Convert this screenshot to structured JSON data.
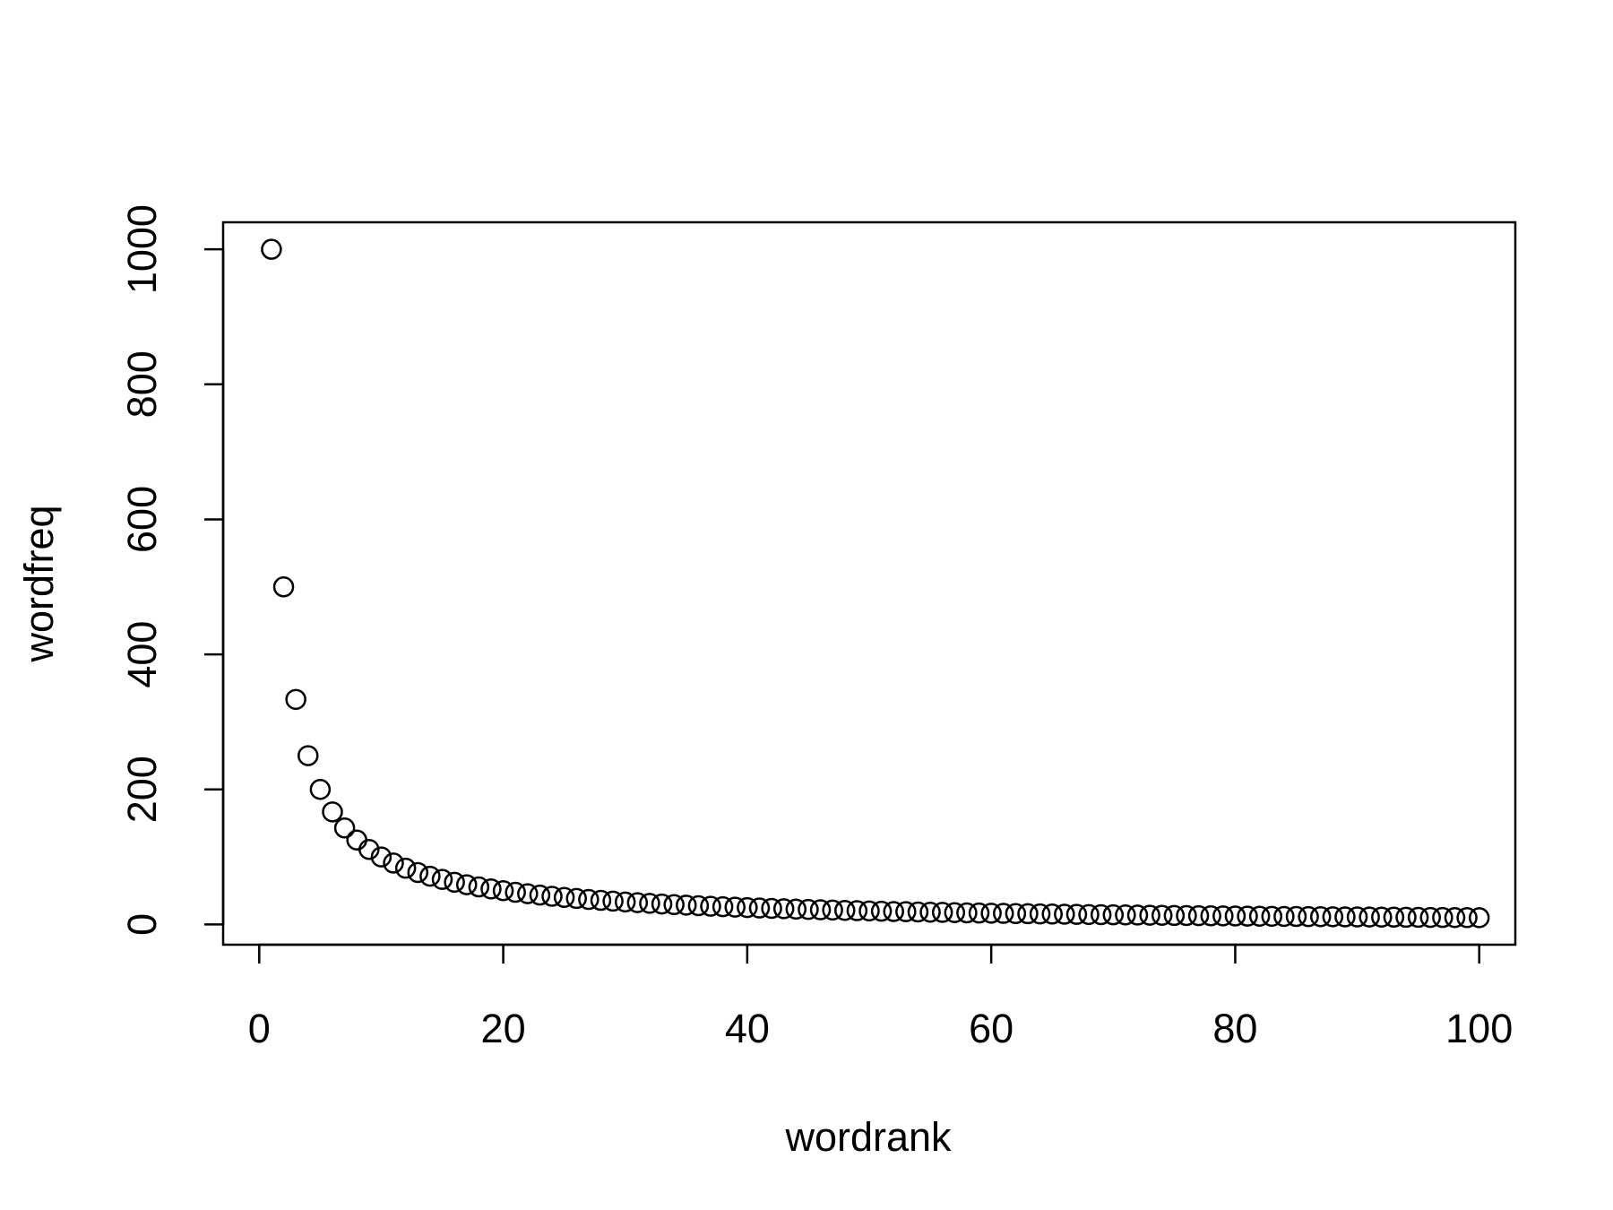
{
  "chart_data": {
    "type": "scatter",
    "title": "",
    "xlabel": "wordrank",
    "ylabel": "wordfreq",
    "xlim": [
      -2.96,
      102.96
    ],
    "ylim": [
      -30,
      1040
    ],
    "x_ticks": [
      0,
      20,
      40,
      60,
      80,
      100
    ],
    "y_ticks": [
      0,
      200,
      400,
      600,
      800,
      1000
    ],
    "x_tick_labels": [
      "0",
      "20",
      "40",
      "60",
      "80",
      "100"
    ],
    "y_tick_labels": [
      "0",
      "200",
      "400",
      "600",
      "800",
      "1000"
    ],
    "grid": false,
    "marker": "open-circle",
    "colors": {
      "points": "#000000",
      "background": "#ffffff"
    },
    "points": [
      {
        "x": 1,
        "y": 1000.0
      },
      {
        "x": 2,
        "y": 500.0
      },
      {
        "x": 3,
        "y": 333.3
      },
      {
        "x": 4,
        "y": 250.0
      },
      {
        "x": 5,
        "y": 200.0
      },
      {
        "x": 6,
        "y": 166.7
      },
      {
        "x": 7,
        "y": 142.9
      },
      {
        "x": 8,
        "y": 125.0
      },
      {
        "x": 9,
        "y": 111.1
      },
      {
        "x": 10,
        "y": 100.0
      },
      {
        "x": 11,
        "y": 90.9
      },
      {
        "x": 12,
        "y": 83.3
      },
      {
        "x": 13,
        "y": 76.9
      },
      {
        "x": 14,
        "y": 71.4
      },
      {
        "x": 15,
        "y": 66.7
      },
      {
        "x": 16,
        "y": 62.5
      },
      {
        "x": 17,
        "y": 58.8
      },
      {
        "x": 18,
        "y": 55.6
      },
      {
        "x": 19,
        "y": 52.6
      },
      {
        "x": 20,
        "y": 50.0
      },
      {
        "x": 21,
        "y": 47.6
      },
      {
        "x": 22,
        "y": 45.5
      },
      {
        "x": 23,
        "y": 43.5
      },
      {
        "x": 24,
        "y": 41.7
      },
      {
        "x": 25,
        "y": 40.0
      },
      {
        "x": 26,
        "y": 38.5
      },
      {
        "x": 27,
        "y": 37.0
      },
      {
        "x": 28,
        "y": 35.7
      },
      {
        "x": 29,
        "y": 34.5
      },
      {
        "x": 30,
        "y": 33.3
      },
      {
        "x": 31,
        "y": 32.3
      },
      {
        "x": 32,
        "y": 31.3
      },
      {
        "x": 33,
        "y": 30.3
      },
      {
        "x": 34,
        "y": 29.4
      },
      {
        "x": 35,
        "y": 28.6
      },
      {
        "x": 36,
        "y": 27.8
      },
      {
        "x": 37,
        "y": 27.0
      },
      {
        "x": 38,
        "y": 26.3
      },
      {
        "x": 39,
        "y": 25.6
      },
      {
        "x": 40,
        "y": 25.0
      },
      {
        "x": 41,
        "y": 24.4
      },
      {
        "x": 42,
        "y": 23.8
      },
      {
        "x": 43,
        "y": 23.3
      },
      {
        "x": 44,
        "y": 22.7
      },
      {
        "x": 45,
        "y": 22.2
      },
      {
        "x": 46,
        "y": 21.7
      },
      {
        "x": 47,
        "y": 21.3
      },
      {
        "x": 48,
        "y": 20.8
      },
      {
        "x": 49,
        "y": 20.4
      },
      {
        "x": 50,
        "y": 20.0
      },
      {
        "x": 51,
        "y": 19.6
      },
      {
        "x": 52,
        "y": 19.2
      },
      {
        "x": 53,
        "y": 18.9
      },
      {
        "x": 54,
        "y": 18.5
      },
      {
        "x": 55,
        "y": 18.2
      },
      {
        "x": 56,
        "y": 17.9
      },
      {
        "x": 57,
        "y": 17.5
      },
      {
        "x": 58,
        "y": 17.2
      },
      {
        "x": 59,
        "y": 16.9
      },
      {
        "x": 60,
        "y": 16.7
      },
      {
        "x": 61,
        "y": 16.4
      },
      {
        "x": 62,
        "y": 16.1
      },
      {
        "x": 63,
        "y": 15.9
      },
      {
        "x": 64,
        "y": 15.6
      },
      {
        "x": 65,
        "y": 15.4
      },
      {
        "x": 66,
        "y": 15.2
      },
      {
        "x": 67,
        "y": 14.9
      },
      {
        "x": 68,
        "y": 14.7
      },
      {
        "x": 69,
        "y": 14.5
      },
      {
        "x": 70,
        "y": 14.3
      },
      {
        "x": 71,
        "y": 14.1
      },
      {
        "x": 72,
        "y": 13.9
      },
      {
        "x": 73,
        "y": 13.7
      },
      {
        "x": 74,
        "y": 13.5
      },
      {
        "x": 75,
        "y": 13.3
      },
      {
        "x": 76,
        "y": 13.2
      },
      {
        "x": 77,
        "y": 13.0
      },
      {
        "x": 78,
        "y": 12.8
      },
      {
        "x": 79,
        "y": 12.7
      },
      {
        "x": 80,
        "y": 12.5
      },
      {
        "x": 81,
        "y": 12.3
      },
      {
        "x": 82,
        "y": 12.2
      },
      {
        "x": 83,
        "y": 12.0
      },
      {
        "x": 84,
        "y": 11.9
      },
      {
        "x": 85,
        "y": 11.8
      },
      {
        "x": 86,
        "y": 11.6
      },
      {
        "x": 87,
        "y": 11.5
      },
      {
        "x": 88,
        "y": 11.4
      },
      {
        "x": 89,
        "y": 11.2
      },
      {
        "x": 90,
        "y": 11.1
      },
      {
        "x": 91,
        "y": 11.0
      },
      {
        "x": 92,
        "y": 10.9
      },
      {
        "x": 93,
        "y": 10.8
      },
      {
        "x": 94,
        "y": 10.6
      },
      {
        "x": 95,
        "y": 10.5
      },
      {
        "x": 96,
        "y": 10.4
      },
      {
        "x": 97,
        "y": 10.3
      },
      {
        "x": 98,
        "y": 10.2
      },
      {
        "x": 99,
        "y": 10.1
      },
      {
        "x": 100,
        "y": 10.0
      }
    ]
  }
}
